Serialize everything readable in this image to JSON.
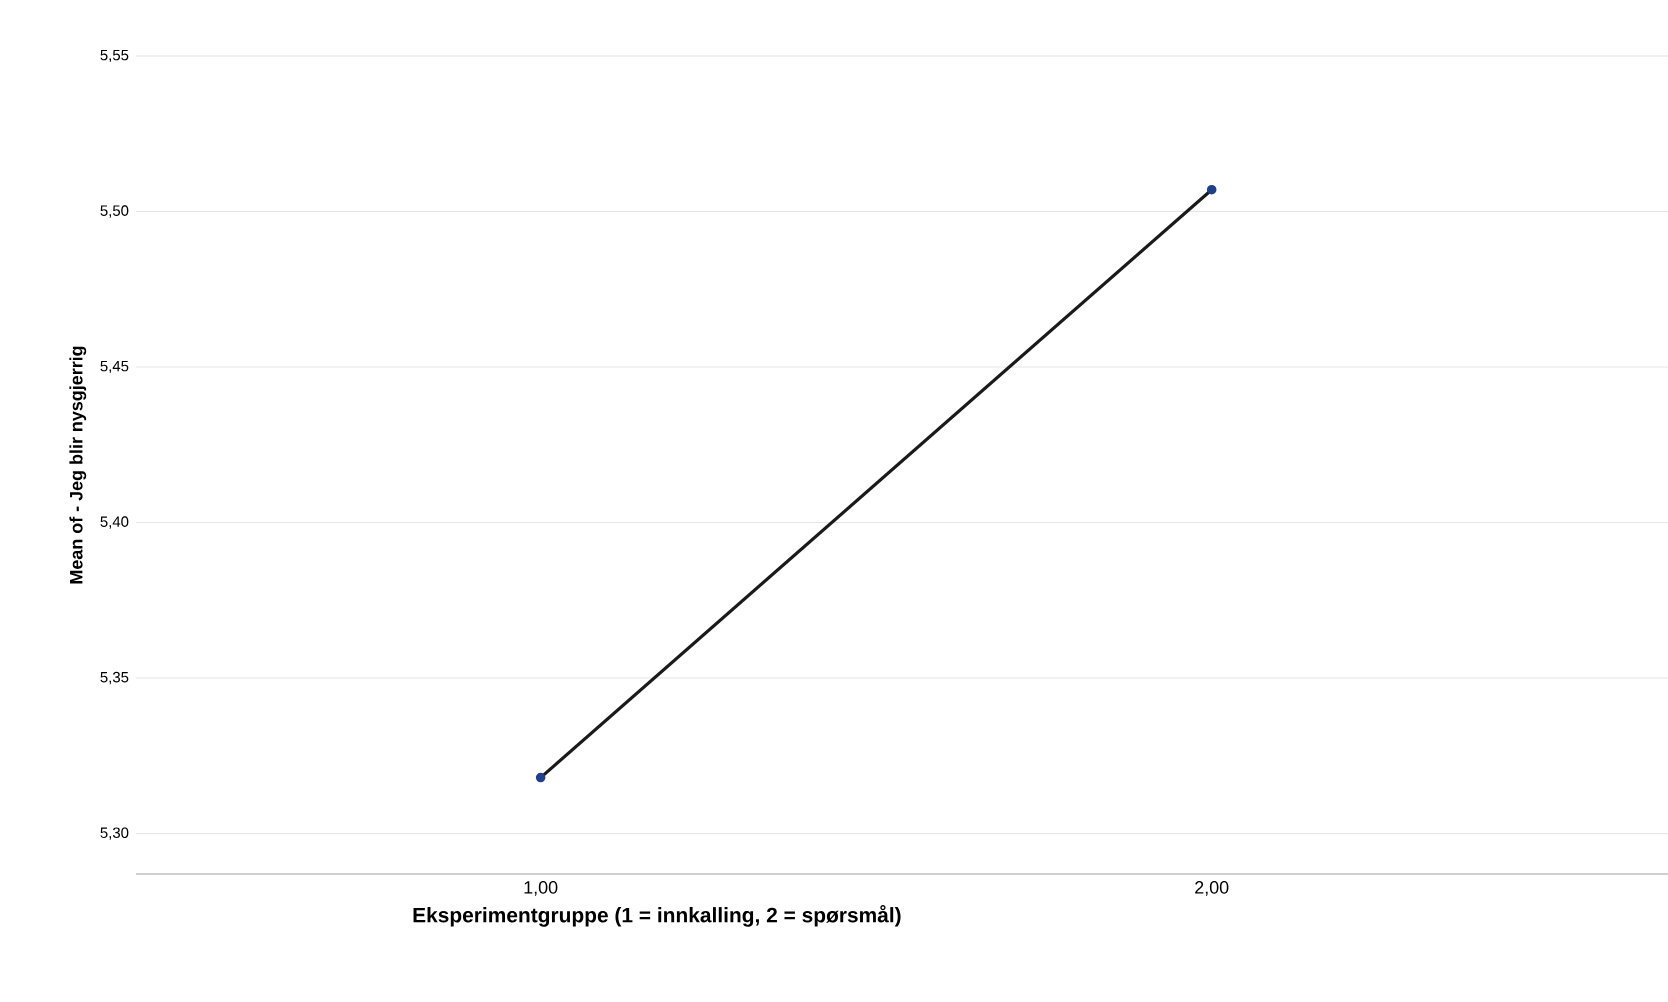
{
  "chart_data": {
    "type": "line",
    "xlabel": "Eksperimentgruppe (1 = innkalling, 2 = spørsmål)",
    "ylabel": "Mean of - Jeg blir nysgjerrig",
    "categories": [
      "1,00",
      "2,00"
    ],
    "series": [
      {
        "color": "#1a1a1a",
        "values": [
          5.318,
          5.507
        ]
      }
    ],
    "ylim": [
      5.287,
      5.55
    ],
    "yticks": [
      {
        "value": 5.3,
        "label": "5,30"
      },
      {
        "value": 5.35,
        "label": "5,35"
      },
      {
        "value": 5.4,
        "label": "5,40"
      },
      {
        "value": 5.45,
        "label": "5,45"
      },
      {
        "value": 5.5,
        "label": "5,50"
      },
      {
        "value": 5.55,
        "label": "5,55"
      }
    ],
    "grid": "y",
    "marker": "circle",
    "line_style": "solid"
  }
}
